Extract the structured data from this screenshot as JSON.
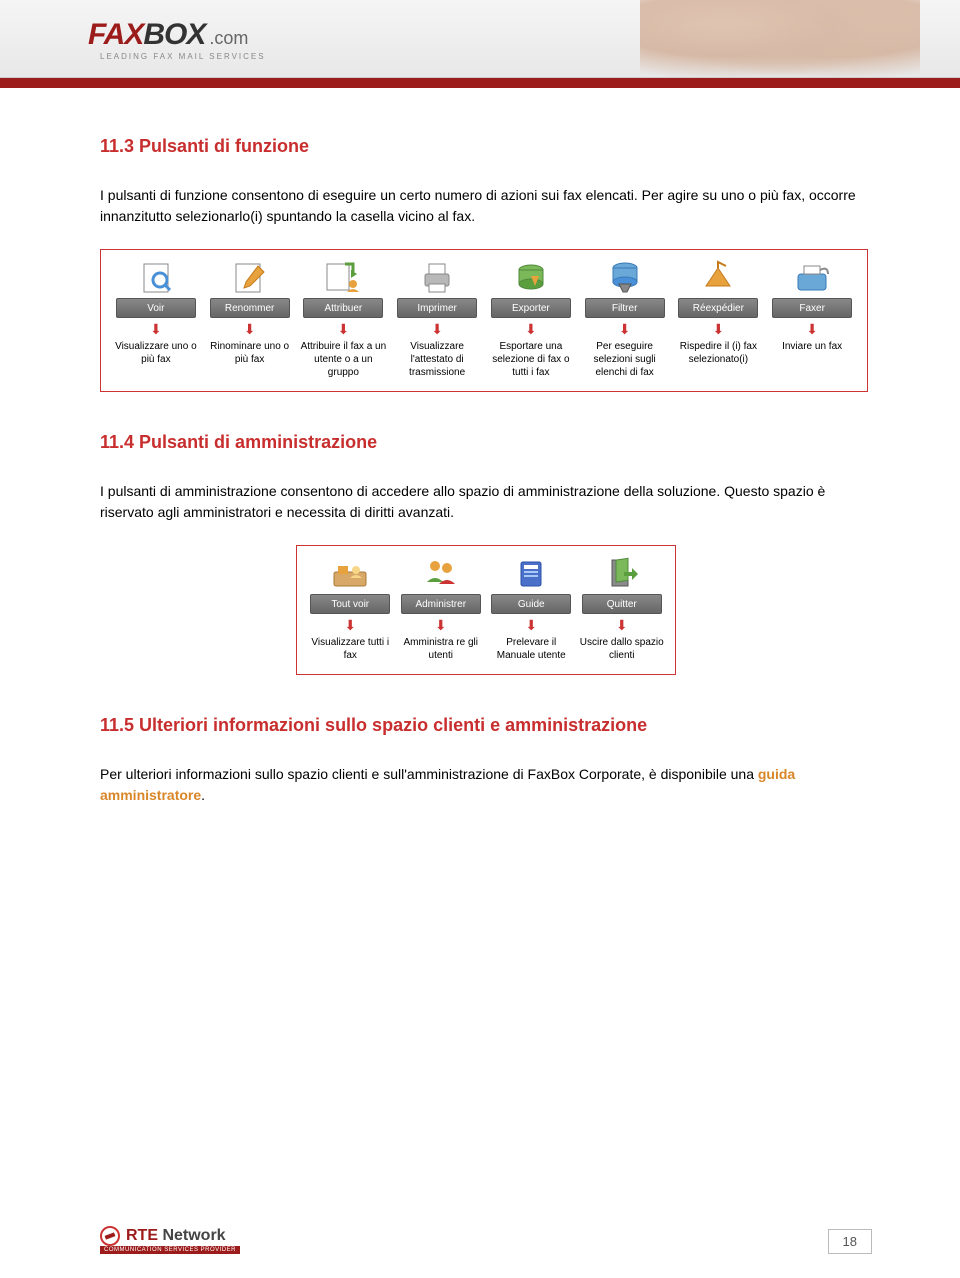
{
  "header": {
    "logo_fax": "FAX",
    "logo_box": "BOX",
    "logo_com": ".com",
    "logo_sub": "LEADING FAX MAIL SERVICES"
  },
  "section1": {
    "title": "11.3 Pulsanti di funzione",
    "para": "I pulsanti di funzione consentono di eseguire un certo numero di azioni sui fax elencati. Per agire su uno o più fax, occorre innanzitutto selezionarlo(i) spuntando la casella vicino al fax."
  },
  "toolbar1": {
    "items": [
      {
        "btn": "Voir",
        "desc": "Visualizzare uno o più fax",
        "icon": "view"
      },
      {
        "btn": "Renommer",
        "desc": "Rinominare uno o più fax",
        "icon": "rename"
      },
      {
        "btn": "Attribuer",
        "desc": "Attribuire il fax a un utente o a un gruppo",
        "icon": "assign"
      },
      {
        "btn": "Imprimer",
        "desc": "Visualizzare l'attestato di trasmissione",
        "icon": "print"
      },
      {
        "btn": "Exporter",
        "desc": "Esportare una selezione di fax o tutti i fax",
        "icon": "export"
      },
      {
        "btn": "Filtrer",
        "desc": "Per eseguire selezioni sugli elenchi di fax",
        "icon": "filter"
      },
      {
        "btn": "Réexpédier",
        "desc": "Rispedire il (i) fax selezionato(i)",
        "icon": "resend"
      },
      {
        "btn": "Faxer",
        "desc": "Inviare un fax",
        "icon": "fax"
      }
    ]
  },
  "section2": {
    "title": "11.4 Pulsanti di amministrazione",
    "para1": "I pulsanti di amministrazione consentono di accedere allo spazio di amministrazione della soluzione. Questo spazio è riservato agli amministratori e necessita di diritti avanzati."
  },
  "toolbar2": {
    "items": [
      {
        "btn": "Tout voir",
        "desc": "Visualizzare tutti i fax",
        "icon": "viewall"
      },
      {
        "btn": "Administrer",
        "desc": "Amministra re gli utenti",
        "icon": "admin"
      },
      {
        "btn": "Guide",
        "desc": "Prelevare il Manuale utente",
        "icon": "guide"
      },
      {
        "btn": "Quitter",
        "desc": "Uscire dallo spazio clienti",
        "icon": "quit"
      }
    ]
  },
  "section3": {
    "title": "11.5 Ulteriori informazioni sullo spazio clienti e amministrazione",
    "para_pre": "Per ulteriori informazioni sullo spazio clienti e sull'amministrazione di FaxBox Corporate, è disponibile una ",
    "para_link": "guida amministratore",
    "para_post": "."
  },
  "footer": {
    "logo_rte": "RTE",
    "logo_net": " Network",
    "logo_sub": "COMMUNICATION SERVICES PROVIDER",
    "page": "18"
  },
  "colors": {
    "heading": "#c82e2e",
    "border": "#cc3333",
    "darkred": "#9c1b1b"
  }
}
